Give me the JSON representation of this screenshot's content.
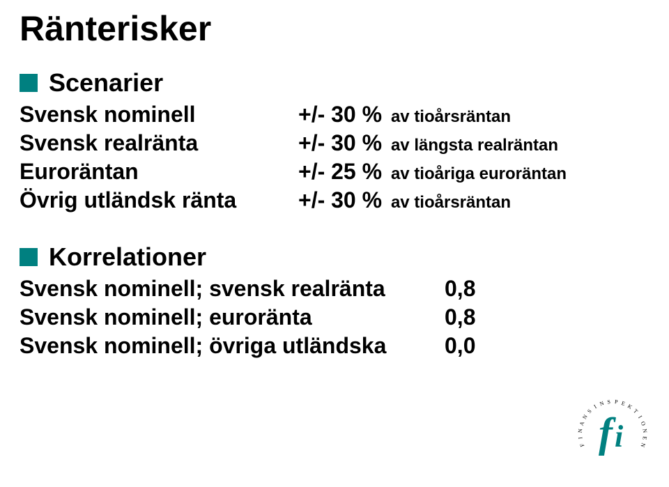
{
  "title": "Ränterisker",
  "bullet_color": "#008080",
  "sections": {
    "scenarios": {
      "heading": "Scenarier",
      "rows": [
        {
          "term": "Svensk nominell",
          "pct": "+/- 30 %",
          "desc": "av tioårsräntan"
        },
        {
          "term": "Svensk realränta",
          "pct": "+/- 30 %",
          "desc": "av längsta realräntan"
        },
        {
          "term": "Euroräntan",
          "pct": "+/- 25 %",
          "desc": "av tioåriga euroräntan"
        },
        {
          "term": "Övrig utländsk ränta",
          "pct": "+/- 30 %",
          "desc": "av tioårsräntan"
        }
      ]
    },
    "correlations": {
      "heading": "Korrelationer",
      "rows": [
        {
          "term": "Svensk nominell; svensk realränta",
          "val": "0,8"
        },
        {
          "term": "Svensk nominell; euroränta",
          "val": "0,8"
        },
        {
          "term": "Svensk nominell; övriga utländska",
          "val": "0,0"
        }
      ]
    }
  },
  "logo": {
    "name": "finansinspektionen-logo",
    "fi_color": "#008080",
    "ring_text": "F I N A N S I N S P E K T I O N E N",
    "text_color": "#000000"
  }
}
